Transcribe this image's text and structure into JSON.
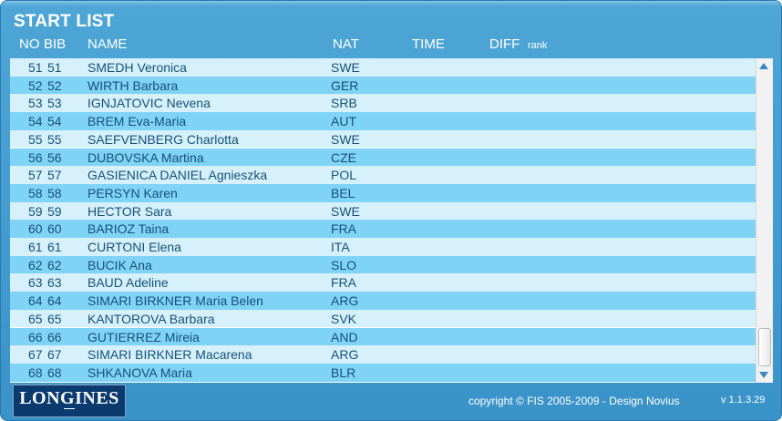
{
  "title": "START LIST",
  "columns": {
    "no": "NO",
    "bib": "BIB",
    "name": "NAME",
    "nat": "NAT",
    "time": "TIME",
    "diff": "DIFF",
    "rank": "rank"
  },
  "rows": [
    {
      "no": "51",
      "bib": "51",
      "name": "SMEDH Veronica",
      "nat": "SWE"
    },
    {
      "no": "52",
      "bib": "52",
      "name": "WIRTH Barbara",
      "nat": "GER"
    },
    {
      "no": "53",
      "bib": "53",
      "name": "IGNJATOVIC Nevena",
      "nat": "SRB"
    },
    {
      "no": "54",
      "bib": "54",
      "name": "BREM Eva-Maria",
      "nat": "AUT"
    },
    {
      "no": "55",
      "bib": "55",
      "name": "SAEFVENBERG Charlotta",
      "nat": "SWE"
    },
    {
      "no": "56",
      "bib": "56",
      "name": "DUBOVSKA Martina",
      "nat": "CZE"
    },
    {
      "no": "57",
      "bib": "57",
      "name": "GASIENICA DANIEL Agnieszka",
      "nat": "POL"
    },
    {
      "no": "58",
      "bib": "58",
      "name": "PERSYN Karen",
      "nat": "BEL"
    },
    {
      "no": "59",
      "bib": "59",
      "name": "HECTOR Sara",
      "nat": "SWE"
    },
    {
      "no": "60",
      "bib": "60",
      "name": "BARIOZ Taina",
      "nat": "FRA"
    },
    {
      "no": "61",
      "bib": "61",
      "name": "CURTONI Elena",
      "nat": "ITA"
    },
    {
      "no": "62",
      "bib": "62",
      "name": "BUCIK Ana",
      "nat": "SLO"
    },
    {
      "no": "63",
      "bib": "63",
      "name": "BAUD Adeline",
      "nat": "FRA"
    },
    {
      "no": "64",
      "bib": "64",
      "name": "SIMARI BIRKNER Maria Belen",
      "nat": "ARG"
    },
    {
      "no": "65",
      "bib": "65",
      "name": "KANTOROVA Barbara",
      "nat": "SVK"
    },
    {
      "no": "66",
      "bib": "66",
      "name": "GUTIERREZ Mireia",
      "nat": "AND"
    },
    {
      "no": "67",
      "bib": "67",
      "name": "SIMARI BIRKNER Macarena",
      "nat": "ARG"
    },
    {
      "no": "68",
      "bib": "68",
      "name": "SHKANOVA Maria",
      "nat": "BLR"
    }
  ],
  "scroll": {
    "position_fraction": 0.98
  },
  "footer": {
    "logo_text": "LONGINES",
    "copyright": "copyright © FIS 2005-2009 - Design Novius",
    "version": "v 1.1.3.29"
  },
  "colors": {
    "frame": "#3a93c8",
    "row_light": "#d6f1fb",
    "row_dark": "#7fd3f5",
    "text": "#16507a"
  }
}
